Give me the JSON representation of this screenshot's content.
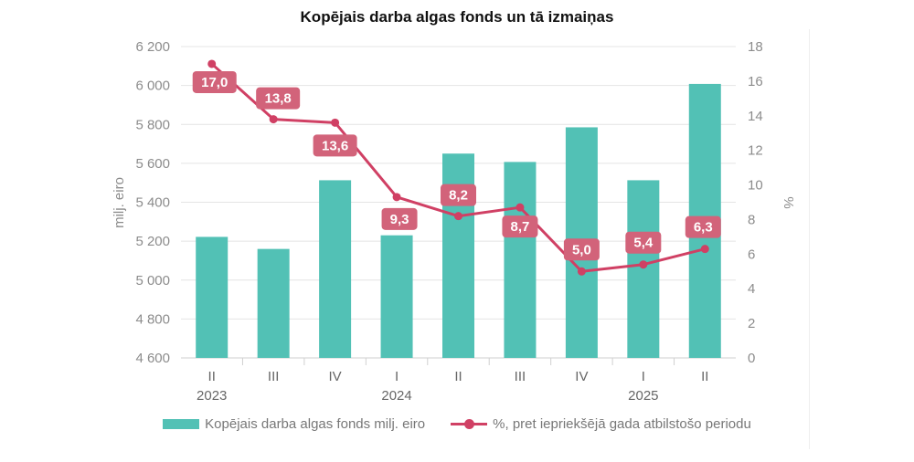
{
  "chart_data": {
    "type": "bar",
    "title": "Kopējais darba algas fonds un tā izmaiņas",
    "categories": [
      "II",
      "III",
      "IV",
      "I",
      "II",
      "III",
      "IV",
      "I",
      "II"
    ],
    "year_labels": [
      "2023",
      "",
      "",
      "2024",
      "",
      "",
      "",
      "2025",
      ""
    ],
    "ylabel": "milj. eiro",
    "y2label": "%",
    "ylim": [
      4600,
      6200
    ],
    "y_ticks": [
      "4 600",
      "4 800",
      "5 000",
      "5 200",
      "5 400",
      "5 600",
      "5 800",
      "6 000",
      "6 200"
    ],
    "y2lim": [
      0,
      18
    ],
    "y2_ticks": [
      "0",
      "2",
      "4",
      "6",
      "8",
      "10",
      "12",
      "14",
      "16",
      "18"
    ],
    "grid": true,
    "legend_position": "bottom",
    "series": [
      {
        "name": "Kopējais darba algas fonds milj. eiro",
        "type": "bar",
        "axis": "left",
        "color": "#52c1b5",
        "values": [
          5222,
          5160,
          5513,
          5230,
          5650,
          5607,
          5785,
          5513,
          6008
        ]
      },
      {
        "name": "%, pret iepriekšējā gada atbilstošo periodu",
        "type": "line",
        "axis": "right",
        "color": "#d04064",
        "values": [
          17.0,
          13.8,
          13.6,
          9.3,
          8.2,
          8.7,
          5.0,
          5.4,
          6.3
        ],
        "data_labels": [
          "17,0",
          "13,8",
          "13,6",
          "9,3",
          "8,2",
          "8,7",
          "5,0",
          "5,4",
          "6,3"
        ]
      }
    ]
  }
}
